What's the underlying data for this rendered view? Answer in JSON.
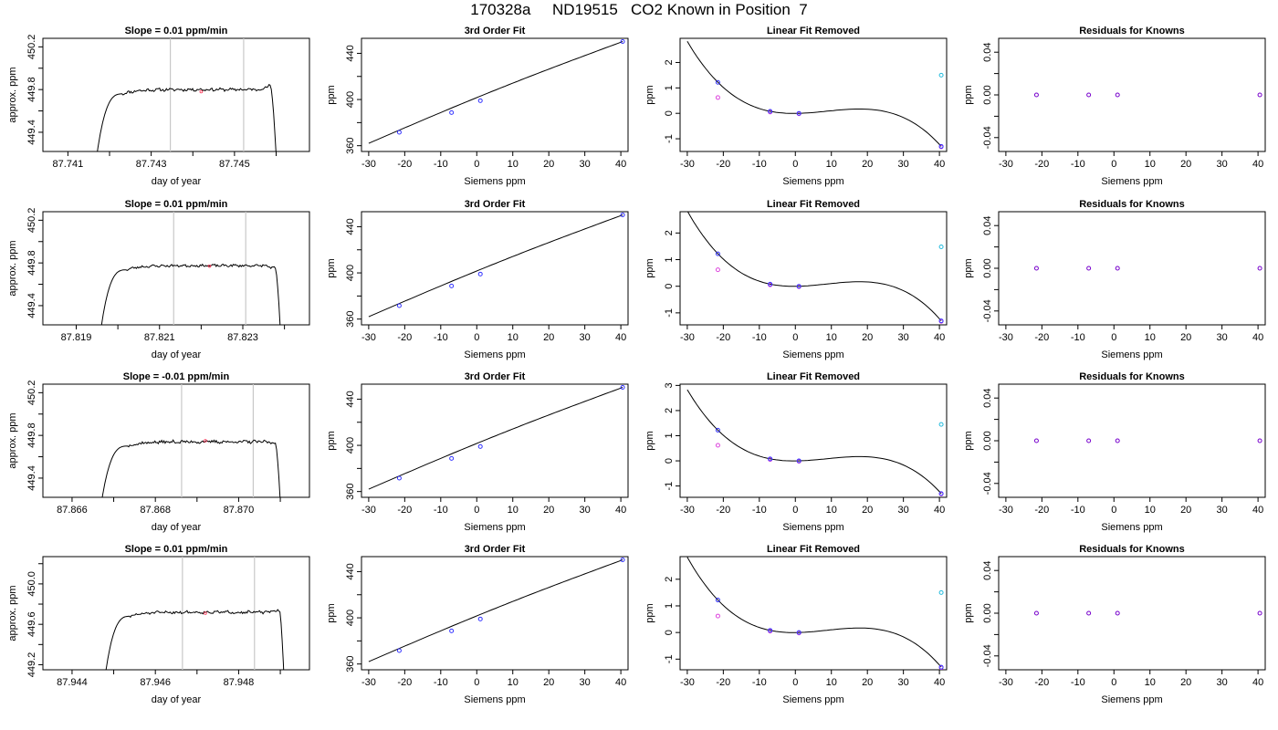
{
  "page": {
    "title": "170328a     ND19515   CO2 Known in Position  7"
  },
  "colors": {
    "axis": "#000000",
    "trace": "#000000",
    "vline": "#c8c8c8",
    "blue": "#3333ff",
    "magenta": "#dd44dd",
    "cyan": "#22bbdd",
    "purple": "#7700cc",
    "red": "#ff3355"
  },
  "chart_data": [
    {
      "type": "line",
      "panel": "time-trace",
      "row": 1,
      "title": "Slope =  0.01  ppm/min",
      "xlabel": "day of year",
      "ylabel": "approx. ppm",
      "xlim": [
        87.7404,
        87.7468
      ],
      "ylim": [
        449.22,
        450.28
      ],
      "xticks": [
        87.741,
        87.742,
        87.743,
        87.744,
        87.745,
        87.746
      ],
      "xtick_labels": [
        "87.741",
        "",
        "87.743",
        "",
        "87.745",
        ""
      ],
      "yticks": [
        449.4,
        449.6,
        449.8,
        450.0,
        450.2
      ],
      "ytick_labels": [
        "449.4",
        "",
        "449.8",
        "",
        "450.2"
      ],
      "vlines": [
        87.74346,
        87.74522
      ],
      "trace": {
        "start": 87.74164,
        "rise_end": 87.74232,
        "plateau_end": 87.74586,
        "end": 87.74602,
        "level": 449.8,
        "noise": 0.012,
        "tail": 449.84,
        "seed": 11
      },
      "marker": [
        87.7442,
        449.78
      ]
    },
    {
      "type": "scatter",
      "panel": "fit",
      "row": 1,
      "title": "3rd Order Fit",
      "xlabel": "Siemens ppm",
      "ylabel": "ppm",
      "xlim": [
        -32,
        42
      ],
      "ylim": [
        355,
        453
      ],
      "xticks": [
        -30,
        -20,
        -10,
        0,
        10,
        20,
        30,
        40
      ],
      "yticks": [
        360,
        380,
        400,
        420,
        440
      ],
      "ytick_labels": [
        "360",
        "",
        "400",
        "",
        "440"
      ],
      "points": [
        [
          -21.5,
          371.6
        ],
        [
          -7.0,
          388.7
        ],
        [
          1.0,
          399.0
        ],
        [
          40.5,
          450.2
        ]
      ],
      "curve": {
        "x_range": [
          -30,
          40.5
        ],
        "y_at_start": 362.0,
        "y_at_end": 450.2,
        "bend": 2.2
      }
    },
    {
      "type": "scatter",
      "panel": "linear-removed",
      "row": 1,
      "title": "Linear Fit Removed",
      "xlabel": "Siemens ppm",
      "ylabel": "ppm",
      "xlim": [
        -32,
        42
      ],
      "ylim": [
        -1.5,
        2.95
      ],
      "xticks": [
        -30,
        -20,
        -10,
        0,
        10,
        20,
        30,
        40
      ],
      "yticks": [
        -1,
        0,
        1,
        2
      ],
      "points_blue": [
        [
          -21.5,
          1.22
        ],
        [
          -7.0,
          0.08
        ],
        [
          1.0,
          0.0
        ],
        [
          40.5,
          -1.3
        ]
      ],
      "points_magenta": [
        [
          -21.5,
          0.62
        ],
        [
          -7.0,
          0.05
        ],
        [
          1.0,
          -0.02
        ],
        [
          40.5,
          -1.32
        ]
      ],
      "points_cyan": [
        [
          40.5,
          1.5
        ]
      ],
      "curve": {
        "x_range": [
          -30,
          40.5
        ],
        "coef": [
          0.0,
          0.0,
          0.001213,
          -4.84e-05
        ]
      }
    },
    {
      "type": "scatter",
      "panel": "residuals",
      "row": 1,
      "title": "Residuals for Knowns",
      "xlabel": "Siemens ppm",
      "ylabel": "ppm",
      "xlim": [
        -32,
        42
      ],
      "ylim": [
        -0.053,
        0.053
      ],
      "xticks": [
        -30,
        -20,
        -10,
        0,
        10,
        20,
        30,
        40
      ],
      "yticks": [
        -0.04,
        -0.02,
        0.0,
        0.02,
        0.04
      ],
      "ytick_labels": [
        "-0.04",
        "",
        "0.00",
        "",
        "0.04"
      ],
      "points": [
        [
          -21.5,
          0.0
        ],
        [
          -7.0,
          0.0
        ],
        [
          1.0,
          0.0
        ],
        [
          40.5,
          0.0
        ]
      ]
    },
    {
      "type": "line",
      "panel": "time-trace",
      "row": 2,
      "title": "Slope =  0.01  ppm/min",
      "xlabel": "day of year",
      "ylabel": "approx. ppm",
      "xlim": [
        87.8182,
        87.8246
      ],
      "ylim": [
        449.22,
        450.28
      ],
      "xticks": [
        87.819,
        87.82,
        87.821,
        87.822,
        87.823,
        87.824
      ],
      "xtick_labels": [
        "87.819",
        "",
        "87.821",
        "",
        "87.823",
        ""
      ],
      "yticks": [
        449.4,
        449.6,
        449.8,
        450.0,
        450.2
      ],
      "ytick_labels": [
        "449.4",
        "",
        "449.8",
        "",
        "450.2"
      ],
      "vlines": [
        87.82134,
        87.82307
      ],
      "trace": {
        "start": 87.81954,
        "rise_end": 87.8202,
        "plateau_end": 87.82378,
        "end": 87.82392,
        "level": 449.775,
        "noise": 0.01,
        "tail": 449.75,
        "seed": 23
      },
      "marker": [
        87.8222,
        449.77
      ]
    },
    {
      "type": "scatter",
      "panel": "fit",
      "row": 2,
      "title": "3rd Order Fit",
      "xlabel": "Siemens ppm",
      "ylabel": "ppm",
      "xlim": [
        -32,
        42
      ],
      "ylim": [
        355,
        453
      ],
      "xticks": [
        -30,
        -20,
        -10,
        0,
        10,
        20,
        30,
        40
      ],
      "yticks": [
        360,
        380,
        400,
        420,
        440
      ],
      "ytick_labels": [
        "360",
        "",
        "400",
        "",
        "440"
      ],
      "points": [
        [
          -21.5,
          371.6
        ],
        [
          -7.0,
          388.7
        ],
        [
          1.0,
          399.0
        ],
        [
          40.5,
          450.2
        ]
      ],
      "curve": {
        "x_range": [
          -30,
          40.5
        ],
        "y_at_start": 362.0,
        "y_at_end": 450.2,
        "bend": 2.2
      }
    },
    {
      "type": "scatter",
      "panel": "linear-removed",
      "row": 2,
      "title": "Linear Fit Removed",
      "xlabel": "Siemens ppm",
      "ylabel": "ppm",
      "xlim": [
        -32,
        42
      ],
      "ylim": [
        -1.45,
        2.8
      ],
      "xticks": [
        -30,
        -20,
        -10,
        0,
        10,
        20,
        30,
        40
      ],
      "yticks": [
        -1,
        0,
        1,
        2
      ],
      "points_blue": [
        [
          -21.5,
          1.22
        ],
        [
          -7.0,
          0.08
        ],
        [
          1.0,
          0.0
        ],
        [
          40.5,
          -1.3
        ]
      ],
      "points_magenta": [
        [
          -21.5,
          0.62
        ],
        [
          -7.0,
          0.05
        ],
        [
          1.0,
          -0.02
        ],
        [
          40.5,
          -1.32
        ]
      ],
      "points_cyan": [
        [
          40.5,
          1.48
        ]
      ],
      "curve": {
        "x_range": [
          -30,
          40.5
        ],
        "coef": [
          0.0,
          0.0,
          0.001213,
          -4.84e-05
        ]
      }
    },
    {
      "type": "scatter",
      "panel": "residuals",
      "row": 2,
      "title": "Residuals for Knowns",
      "xlabel": "Siemens ppm",
      "ylabel": "ppm",
      "xlim": [
        -32,
        42
      ],
      "ylim": [
        -0.053,
        0.053
      ],
      "xticks": [
        -30,
        -20,
        -10,
        0,
        10,
        20,
        30,
        40
      ],
      "yticks": [
        -0.04,
        -0.02,
        0.0,
        0.02,
        0.04
      ],
      "ytick_labels": [
        "-0.04",
        "",
        "0.00",
        "",
        "0.04"
      ],
      "points": [
        [
          -21.5,
          0.0
        ],
        [
          -7.0,
          0.0
        ],
        [
          1.0,
          0.0
        ],
        [
          40.5,
          0.0
        ]
      ]
    },
    {
      "type": "line",
      "panel": "time-trace",
      "row": 3,
      "title": "Slope =  -0.01  ppm/min",
      "xlabel": "day of year",
      "ylabel": "approx. ppm",
      "xlim": [
        87.8653,
        87.8717
      ],
      "ylim": [
        449.22,
        450.28
      ],
      "xticks": [
        87.866,
        87.867,
        87.868,
        87.869,
        87.87,
        87.871
      ],
      "xtick_labels": [
        "87.866",
        "",
        "87.868",
        "",
        "87.870",
        ""
      ],
      "vlines": [
        87.86863,
        87.87035
      ],
      "yticks": [
        449.4,
        449.6,
        449.8,
        450.0,
        450.2
      ],
      "ytick_labels": [
        "449.4",
        "",
        "449.8",
        "",
        "450.2"
      ],
      "trace": {
        "start": 87.86665,
        "rise_end": 87.86734,
        "plateau_end": 87.87088,
        "end": 87.87102,
        "level": 449.74,
        "noise": 0.013,
        "tail": 449.73,
        "seed": 37
      },
      "marker": [
        87.8692,
        449.75
      ]
    },
    {
      "type": "scatter",
      "panel": "fit",
      "row": 3,
      "title": "3rd Order Fit",
      "xlabel": "Siemens ppm",
      "ylabel": "ppm",
      "xlim": [
        -32,
        42
      ],
      "ylim": [
        355,
        453
      ],
      "xticks": [
        -30,
        -20,
        -10,
        0,
        10,
        20,
        30,
        40
      ],
      "yticks": [
        360,
        380,
        400,
        420,
        440
      ],
      "ytick_labels": [
        "360",
        "",
        "400",
        "",
        "440"
      ],
      "points": [
        [
          -21.5,
          371.6
        ],
        [
          -7.0,
          388.7
        ],
        [
          1.0,
          399.0
        ],
        [
          40.5,
          450.2
        ]
      ],
      "curve": {
        "x_range": [
          -30,
          40.5
        ],
        "y_at_start": 362.0,
        "y_at_end": 450.2,
        "bend": 2.2
      }
    },
    {
      "type": "scatter",
      "panel": "linear-removed",
      "row": 3,
      "title": "Linear Fit Removed",
      "xlabel": "Siemens ppm",
      "ylabel": "ppm",
      "xlim": [
        -32,
        42
      ],
      "ylim": [
        -1.45,
        3.05
      ],
      "xticks": [
        -30,
        -20,
        -10,
        0,
        10,
        20,
        30,
        40
      ],
      "yticks": [
        -1,
        0,
        1,
        2,
        3
      ],
      "points_blue": [
        [
          -21.5,
          1.22
        ],
        [
          -7.0,
          0.08
        ],
        [
          1.0,
          0.0
        ],
        [
          40.5,
          -1.3
        ]
      ],
      "points_magenta": [
        [
          -21.5,
          0.62
        ],
        [
          -7.0,
          0.05
        ],
        [
          1.0,
          -0.02
        ],
        [
          40.5,
          -1.32
        ]
      ],
      "points_cyan": [
        [
          40.5,
          1.45
        ]
      ],
      "curve": {
        "x_range": [
          -30,
          40.5
        ],
        "coef": [
          0.0,
          0.0,
          0.001213,
          -4.84e-05
        ]
      }
    },
    {
      "type": "scatter",
      "panel": "residuals",
      "row": 3,
      "title": "Residuals for Knowns",
      "xlabel": "Siemens ppm",
      "ylabel": "ppm",
      "xlim": [
        -32,
        42
      ],
      "ylim": [
        -0.053,
        0.053
      ],
      "xticks": [
        -30,
        -20,
        -10,
        0,
        10,
        20,
        30,
        40
      ],
      "yticks": [
        -0.04,
        -0.02,
        0.0,
        0.02,
        0.04
      ],
      "ytick_labels": [
        "-0.04",
        "",
        "0.00",
        "",
        "0.04"
      ],
      "points": [
        [
          -21.5,
          0.0
        ],
        [
          -7.0,
          0.0
        ],
        [
          1.0,
          0.0
        ],
        [
          40.5,
          0.0
        ]
      ]
    },
    {
      "type": "line",
      "panel": "time-trace",
      "row": 4,
      "title": "Slope =  0.01  ppm/min",
      "xlabel": "day of year",
      "ylabel": "approx. ppm",
      "xlim": [
        87.9433,
        87.9497
      ],
      "ylim": [
        449.15,
        450.27
      ],
      "xticks": [
        87.944,
        87.945,
        87.946,
        87.947,
        87.948,
        87.949
      ],
      "xtick_labels": [
        "87.944",
        "",
        "87.946",
        "",
        "87.948",
        ""
      ],
      "yticks": [
        449.2,
        449.4,
        449.6,
        449.8,
        450.0,
        450.2
      ],
      "ytick_labels": [
        "449.2",
        "",
        "449.6",
        "",
        "450.0",
        ""
      ],
      "vlines": [
        87.94665,
        87.94838
      ],
      "trace": {
        "start": 87.94475,
        "rise_end": 87.9454,
        "plateau_end": 87.94898,
        "end": 87.9491,
        "level": 449.72,
        "noise": 0.012,
        "tail": 449.74,
        "seed": 51
      },
      "marker": [
        87.9472,
        449.71
      ]
    },
    {
      "type": "scatter",
      "panel": "fit",
      "row": 4,
      "title": "3rd Order Fit",
      "xlabel": "Siemens ppm",
      "ylabel": "ppm",
      "xlim": [
        -32,
        42
      ],
      "ylim": [
        355,
        453
      ],
      "xticks": [
        -30,
        -20,
        -10,
        0,
        10,
        20,
        30,
        40
      ],
      "yticks": [
        360,
        380,
        400,
        420,
        440
      ],
      "ytick_labels": [
        "360",
        "",
        "400",
        "",
        "440"
      ],
      "points": [
        [
          -21.5,
          371.6
        ],
        [
          -7.0,
          388.7
        ],
        [
          1.0,
          399.0
        ],
        [
          40.5,
          450.2
        ]
      ],
      "curve": {
        "x_range": [
          -30,
          40.5
        ],
        "y_at_start": 362.0,
        "y_at_end": 450.2,
        "bend": 2.2
      }
    },
    {
      "type": "scatter",
      "panel": "linear-removed",
      "row": 4,
      "title": "Linear Fit Removed",
      "xlabel": "Siemens ppm",
      "ylabel": "ppm",
      "xlim": [
        -32,
        42
      ],
      "ylim": [
        -1.4,
        2.85
      ],
      "xticks": [
        -30,
        -20,
        -10,
        0,
        10,
        20,
        30,
        40
      ],
      "yticks": [
        -1,
        0,
        1,
        2
      ],
      "points_blue": [
        [
          -21.5,
          1.22
        ],
        [
          -7.0,
          0.08
        ],
        [
          1.0,
          0.0
        ],
        [
          40.5,
          -1.3
        ]
      ],
      "points_magenta": [
        [
          -21.5,
          0.62
        ],
        [
          -7.0,
          0.05
        ],
        [
          1.0,
          -0.02
        ],
        [
          40.5,
          -1.32
        ]
      ],
      "points_cyan": [
        [
          40.5,
          1.5
        ]
      ],
      "curve": {
        "x_range": [
          -30,
          40.5
        ],
        "coef": [
          0.0,
          0.0,
          0.001213,
          -4.84e-05
        ]
      }
    },
    {
      "type": "scatter",
      "panel": "residuals",
      "row": 4,
      "title": "Residuals for Knowns",
      "xlabel": "Siemens ppm",
      "ylabel": "ppm",
      "xlim": [
        -32,
        42
      ],
      "ylim": [
        -0.053,
        0.053
      ],
      "xticks": [
        -30,
        -20,
        -10,
        0,
        10,
        20,
        30,
        40
      ],
      "yticks": [
        -0.04,
        -0.02,
        0.0,
        0.02,
        0.04
      ],
      "ytick_labels": [
        "-0.04",
        "",
        "0.00",
        "",
        "0.04"
      ],
      "points": [
        [
          -21.5,
          0.0
        ],
        [
          -7.0,
          0.0
        ],
        [
          1.0,
          0.0
        ],
        [
          40.5,
          0.0
        ]
      ]
    }
  ]
}
